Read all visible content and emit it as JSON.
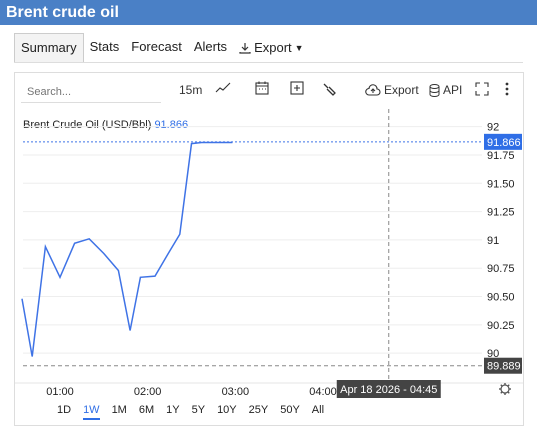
{
  "window": {
    "title": "Brent crude oil"
  },
  "tabs": [
    {
      "label": "Summary",
      "active": true
    },
    {
      "label": "Stats"
    },
    {
      "label": "Forecast"
    },
    {
      "label": "Alerts"
    },
    {
      "label": "Export",
      "icon": "download-icon"
    }
  ],
  "toolbar": {
    "search_placeholder": "Search...",
    "interval": "15m",
    "export_label": "Export",
    "api_label": "API"
  },
  "legend": {
    "name": "Brent Crude Oil (USD/Bbl)",
    "value": "91.866"
  },
  "chart_data": {
    "type": "line",
    "series": [
      {
        "name": "Brent Crude Oil (USD/Bbl)",
        "x": [
          "00:34",
          "00:41",
          "00:50",
          "01:00",
          "01:10",
          "01:20",
          "01:30",
          "01:40",
          "01:48",
          "01:55",
          "02:05",
          "02:15",
          "02:22",
          "02:30",
          "02:37",
          "02:47",
          "02:58",
          "03:10",
          "03:23",
          "03:36"
        ],
        "values": [
          90.48,
          89.97,
          90.94,
          90.67,
          90.97,
          91.01,
          90.88,
          90.73,
          90.2,
          90.67,
          90.68,
          90.9,
          91.05,
          91.85,
          91.86,
          91.86,
          91.86,
          null,
          null,
          null
        ]
      }
    ],
    "x_ticks": [
      "01:00",
      "02:00",
      "03:00",
      "04:00"
    ],
    "y_ticks": [
      "92",
      "91.75",
      "91.50",
      "91.25",
      "91",
      "90.75",
      "90.50",
      "90.25",
      "90"
    ],
    "ylim": [
      89.86,
      92.05
    ],
    "current_value": "91.866",
    "crosshair": {
      "price": "89.889",
      "time": "Apr 18 2026 - 04:45"
    },
    "colors": {
      "line": "#3f73e6",
      "label_bg": "#2f6ee6",
      "crosshair_bg": "#444444"
    }
  },
  "ranges": [
    "1D",
    "1W",
    "1M",
    "6M",
    "1Y",
    "5Y",
    "10Y",
    "25Y",
    "50Y",
    "All"
  ],
  "active_range": "1W"
}
